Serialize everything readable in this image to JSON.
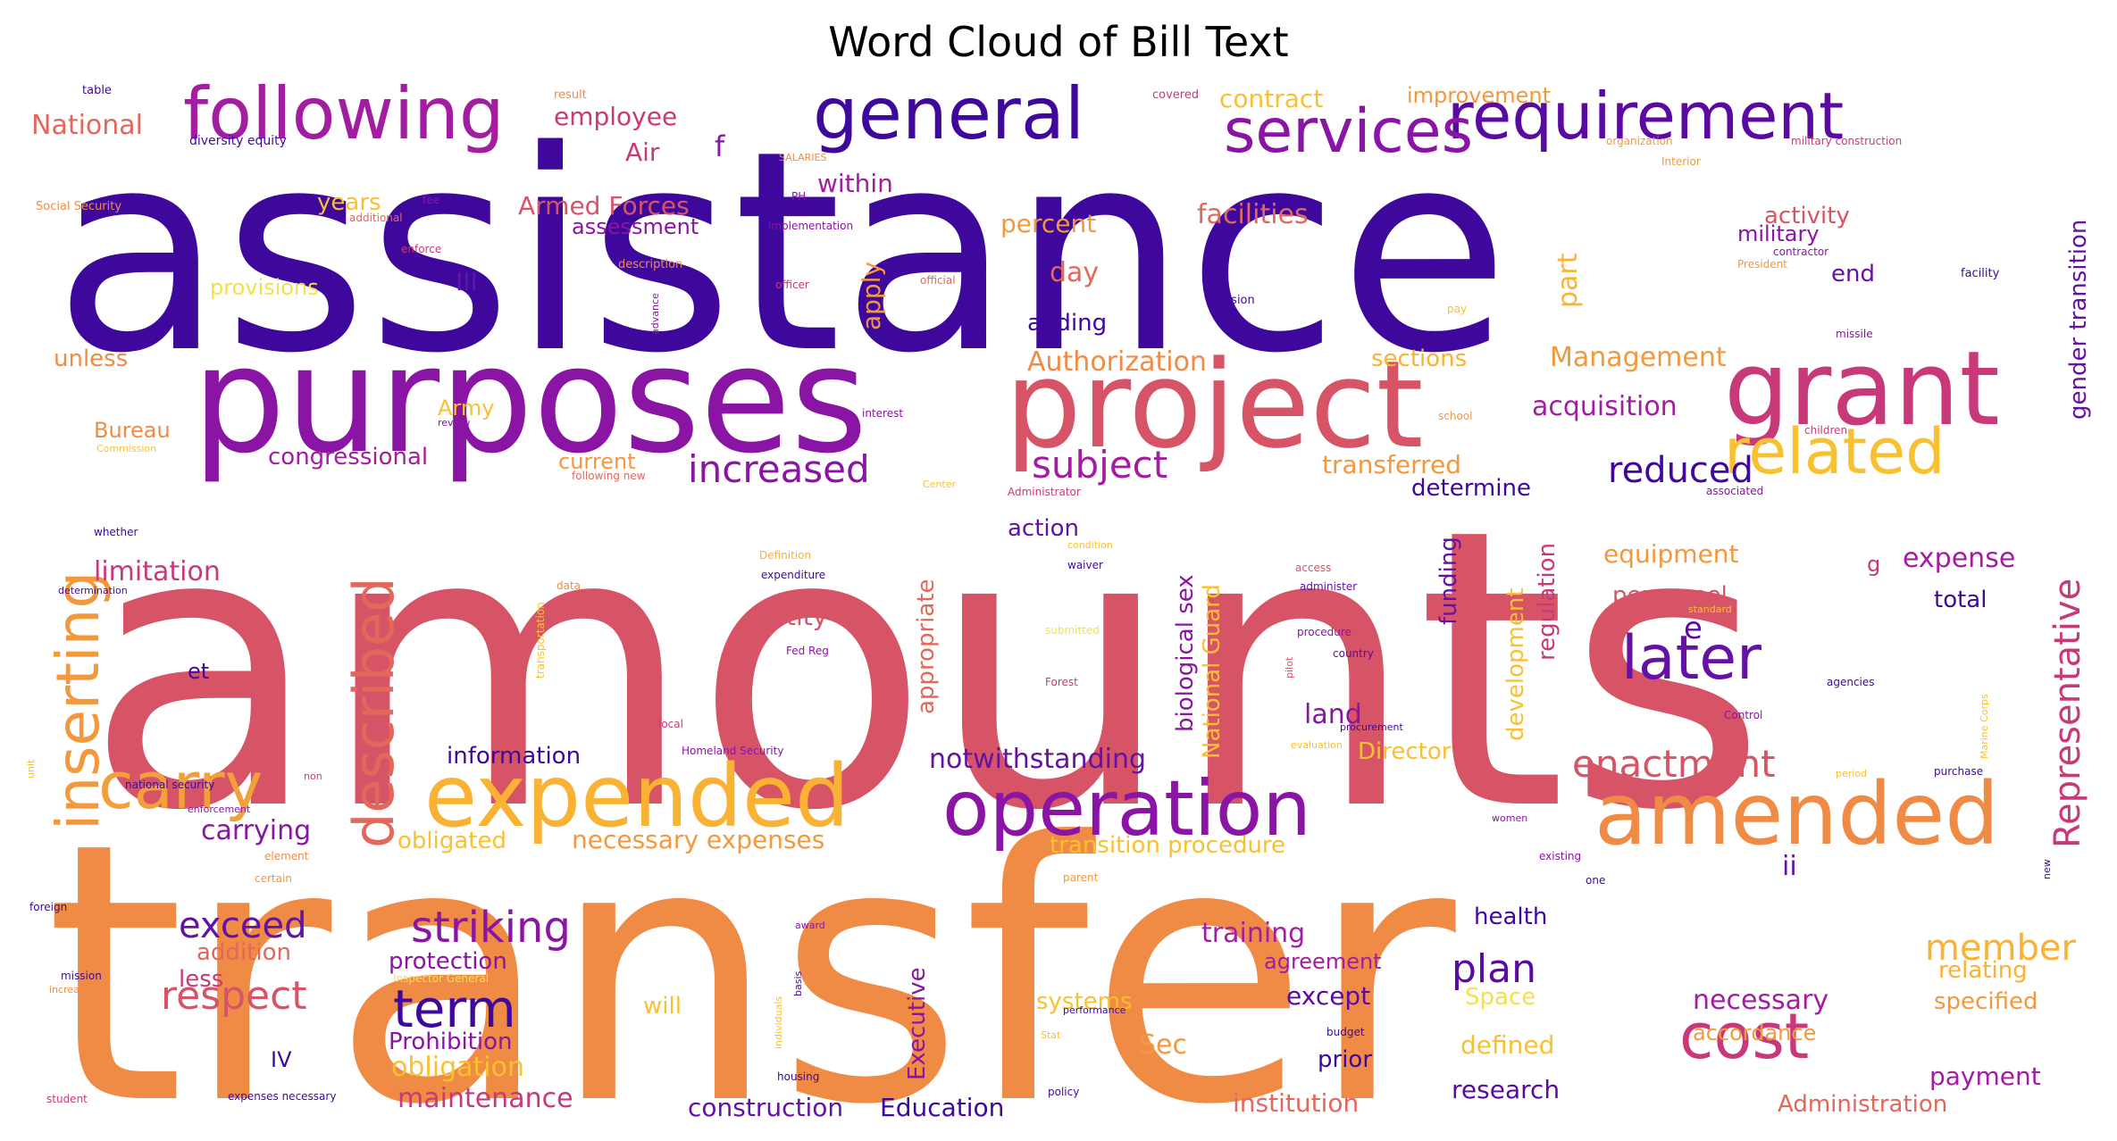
{
  "title": "Word Cloud of Bill Text",
  "palette": {
    "dark": "#3f089c",
    "purple": "#8a14a4",
    "magenta": "#c8397a",
    "pink": "#d75467",
    "coral": "#e3675a",
    "orange": "#f08b45",
    "gold": "#f9b233",
    "yellow": "#f4e04c"
  },
  "words": [
    {
      "text": "assistance",
      "color": "#3f089c"
    },
    {
      "text": "amounts",
      "color": "#d75467"
    },
    {
      "text": "transfer",
      "color": "#f08b45"
    },
    {
      "text": "purposes",
      "color": "#8a14a4"
    },
    {
      "text": "project",
      "color": "#d75467"
    },
    {
      "text": "grant",
      "color": "#c8397a"
    },
    {
      "text": "following",
      "color": "#a31da0"
    },
    {
      "text": "general",
      "color": "#3f089c"
    },
    {
      "text": "requirement",
      "color": "#5a0aa1"
    },
    {
      "text": "services",
      "color": "#8a14a4"
    },
    {
      "text": "inserting",
      "color": "#f4983e"
    },
    {
      "text": "described",
      "color": "#e3675a"
    },
    {
      "text": "carry",
      "color": "#f4a03a"
    },
    {
      "text": "expended",
      "color": "#f9b233"
    },
    {
      "text": "operation",
      "color": "#8a14a4"
    },
    {
      "text": "amended",
      "color": "#f08b45"
    },
    {
      "text": "related",
      "color": "#f9c030"
    },
    {
      "text": "later",
      "color": "#6512a4"
    },
    {
      "text": "cost",
      "color": "#c8397a"
    },
    {
      "text": "term",
      "color": "#3f089c"
    },
    {
      "text": "Representative",
      "color": "#c8397a"
    },
    {
      "text": "increased",
      "color": "#8a14a4"
    },
    {
      "text": "subject",
      "color": "#a31da0"
    },
    {
      "text": "reduced",
      "color": "#3f089c"
    },
    {
      "text": "striking",
      "color": "#8a14a4"
    },
    {
      "text": "respect",
      "color": "#d75467"
    },
    {
      "text": "exceed",
      "color": "#6512a4"
    },
    {
      "text": "plan",
      "color": "#5a0aa1"
    },
    {
      "text": "member",
      "color": "#f9b233"
    },
    {
      "text": "enactment",
      "color": "#d75467"
    },
    {
      "text": "acquisition",
      "color": "#a31da0"
    },
    {
      "text": "Management",
      "color": "#f4983e"
    },
    {
      "text": "Authorization",
      "color": "#f08b45"
    },
    {
      "text": "transferred",
      "color": "#f4983e"
    },
    {
      "text": "determine",
      "color": "#3f089c"
    },
    {
      "text": "necessary expenses",
      "color": "#f4983e"
    },
    {
      "text": "obligated",
      "color": "#f9c030"
    },
    {
      "text": "notwithstanding",
      "color": "#6512a4"
    },
    {
      "text": "carrying",
      "color": "#8a14a4"
    },
    {
      "text": "information",
      "color": "#3f089c"
    },
    {
      "text": "Director",
      "color": "#f9c030"
    },
    {
      "text": "transition procedure",
      "color": "#f9c030"
    },
    {
      "text": "facilities",
      "color": "#e3675a"
    },
    {
      "text": "percent",
      "color": "#f4983e"
    },
    {
      "text": "day",
      "color": "#e3675a"
    },
    {
      "text": "adding",
      "color": "#3f089c"
    },
    {
      "text": "apply",
      "color": "#f4983e"
    },
    {
      "text": "part",
      "color": "#f9b233"
    },
    {
      "text": "sections",
      "color": "#f9b233"
    },
    {
      "text": "contract",
      "color": "#f9c030"
    },
    {
      "text": "improvement",
      "color": "#f4983e"
    },
    {
      "text": "activity",
      "color": "#d75467"
    },
    {
      "text": "military",
      "color": "#8a14a4"
    },
    {
      "text": "end",
      "color": "#6512a4"
    },
    {
      "text": "gender transition",
      "color": "#6512a4"
    },
    {
      "text": "employee",
      "color": "#c8397a"
    },
    {
      "text": "National",
      "color": "#e3675a"
    },
    {
      "text": "Air",
      "color": "#c8397a"
    },
    {
      "text": "f",
      "color": "#8a14a4"
    },
    {
      "text": "within",
      "color": "#a31da0"
    },
    {
      "text": "Armed Forces",
      "color": "#d75467"
    },
    {
      "text": "assessment",
      "color": "#8a14a4"
    },
    {
      "text": "years",
      "color": "#f9c030"
    },
    {
      "text": "provisions",
      "color": "#f4e04c"
    },
    {
      "text": "III",
      "color": "#6512a4"
    },
    {
      "text": "unless",
      "color": "#f08b45"
    },
    {
      "text": "Bureau",
      "color": "#f08b45"
    },
    {
      "text": "Army",
      "color": "#f9c030"
    },
    {
      "text": "congressional",
      "color": "#a31da0"
    },
    {
      "text": "current",
      "color": "#f4983e"
    },
    {
      "text": "limitation",
      "color": "#c8397a"
    },
    {
      "text": "et",
      "color": "#3f089c"
    },
    {
      "text": "action",
      "color": "#6512a4"
    },
    {
      "text": "entity",
      "color": "#d75467"
    },
    {
      "text": "appropriate",
      "color": "#e3675a"
    },
    {
      "text": "biological sex",
      "color": "#8a14a4"
    },
    {
      "text": "National Guard",
      "color": "#f9c030"
    },
    {
      "text": "funding",
      "color": "#6512a4"
    },
    {
      "text": "development",
      "color": "#f9c030"
    },
    {
      "text": "regulation",
      "color": "#c8397a"
    },
    {
      "text": "equipment",
      "color": "#f4983e"
    },
    {
      "text": "personnel",
      "color": "#d75467"
    },
    {
      "text": "e",
      "color": "#5a0aa1"
    },
    {
      "text": "g",
      "color": "#c8397a"
    },
    {
      "text": "expense",
      "color": "#a31da0"
    },
    {
      "text": "total",
      "color": "#3f089c"
    },
    {
      "text": "land",
      "color": "#8a14a4"
    },
    {
      "text": "ii",
      "color": "#6512a4"
    },
    {
      "text": "training",
      "color": "#a31da0"
    },
    {
      "text": "agreement",
      "color": "#a31da0"
    },
    {
      "text": "health",
      "color": "#3f089c"
    },
    {
      "text": "except",
      "color": "#5a0aa1"
    },
    {
      "text": "necessary",
      "color": "#a31da0"
    },
    {
      "text": "relating",
      "color": "#f9b233"
    },
    {
      "text": "specified",
      "color": "#f4983e"
    },
    {
      "text": "accordance",
      "color": "#f4983e"
    },
    {
      "text": "payment",
      "color": "#a31da0"
    },
    {
      "text": "Administration",
      "color": "#e3675a"
    },
    {
      "text": "defined",
      "color": "#f9c030"
    },
    {
      "text": "research",
      "color": "#5a0aa1"
    },
    {
      "text": "institution",
      "color": "#e3675a"
    },
    {
      "text": "prior",
      "color": "#3f089c"
    },
    {
      "text": "Space",
      "color": "#f4e04c"
    },
    {
      "text": "Sec",
      "color": "#f4983e"
    },
    {
      "text": "Executive",
      "color": "#8a14a4"
    },
    {
      "text": "Education",
      "color": "#3f089c"
    },
    {
      "text": "construction",
      "color": "#6512a4"
    },
    {
      "text": "maintenance",
      "color": "#c8397a"
    },
    {
      "text": "obligation",
      "color": "#f9c030"
    },
    {
      "text": "Prohibition",
      "color": "#8a14a4"
    },
    {
      "text": "protection",
      "color": "#8a14a4"
    },
    {
      "text": "systems",
      "color": "#f9c030"
    },
    {
      "text": "will",
      "color": "#f9c030"
    },
    {
      "text": "addition",
      "color": "#e3675a"
    },
    {
      "text": "less",
      "color": "#c8397a"
    },
    {
      "text": "IV",
      "color": "#3f089c"
    },
    {
      "text": "table",
      "color": "#3f089c"
    },
    {
      "text": "result",
      "color": "#f08b45"
    },
    {
      "text": "covered",
      "color": "#c8397a"
    },
    {
      "text": "diversity equity",
      "color": "#3f089c"
    },
    {
      "text": "SALARIES",
      "color": "#f08b45"
    },
    {
      "text": "organization",
      "color": "#f4983e"
    },
    {
      "text": "military construction",
      "color": "#c8397a"
    },
    {
      "text": "Interior",
      "color": "#f4983e"
    },
    {
      "text": "Social Security",
      "color": "#f08b45"
    },
    {
      "text": "fee",
      "color": "#8a14a4"
    },
    {
      "text": "additional",
      "color": "#e3675a"
    },
    {
      "text": "PH",
      "color": "#8a14a4"
    },
    {
      "text": "implementation",
      "color": "#8a14a4"
    },
    {
      "text": "enforce",
      "color": "#c8397a"
    },
    {
      "text": "description",
      "color": "#f08b45"
    },
    {
      "text": "officer",
      "color": "#c8397a"
    },
    {
      "text": "official",
      "color": "#e3675a"
    },
    {
      "text": "contractor",
      "color": "#8a14a4"
    },
    {
      "text": "President",
      "color": "#f4983e"
    },
    {
      "text": "facility",
      "color": "#3f089c"
    },
    {
      "text": "division",
      "color": "#3f089c"
    },
    {
      "text": "pay",
      "color": "#f9c030"
    },
    {
      "text": "missile",
      "color": "#8a14a4"
    },
    {
      "text": "advance",
      "color": "#8a14a4"
    },
    {
      "text": "interest",
      "color": "#8a14a4"
    },
    {
      "text": "school",
      "color": "#f4983e"
    },
    {
      "text": "children",
      "color": "#c8397a"
    },
    {
      "text": "review",
      "color": "#8a14a4"
    },
    {
      "text": "Commission",
      "color": "#f9c030"
    },
    {
      "text": "following new",
      "color": "#e3675a"
    },
    {
      "text": "Center",
      "color": "#f9c030"
    },
    {
      "text": "Administrator",
      "color": "#c8397a"
    },
    {
      "text": "associated",
      "color": "#8a14a4"
    },
    {
      "text": "whether",
      "color": "#3f089c"
    },
    {
      "text": "Definition",
      "color": "#f9b233"
    },
    {
      "text": "condition",
      "color": "#f9c030"
    },
    {
      "text": "expenditure",
      "color": "#3f089c"
    },
    {
      "text": "waiver",
      "color": "#3f089c"
    },
    {
      "text": "access",
      "color": "#d75467"
    },
    {
      "text": "administer",
      "color": "#6512a4"
    },
    {
      "text": "standard",
      "color": "#f9c030"
    },
    {
      "text": "determination",
      "color": "#3f089c"
    },
    {
      "text": "data",
      "color": "#f08b45"
    },
    {
      "text": "submitted",
      "color": "#f4e04c"
    },
    {
      "text": "procedure",
      "color": "#8a14a4"
    },
    {
      "text": "country",
      "color": "#5a0aa1"
    },
    {
      "text": "pilot",
      "color": "#d75467"
    },
    {
      "text": "Fed Reg",
      "color": "#8a14a4"
    },
    {
      "text": "transportation",
      "color": "#f9c030"
    },
    {
      "text": "Forest",
      "color": "#c8397a"
    },
    {
      "text": "procurement",
      "color": "#3f089c"
    },
    {
      "text": "agencies",
      "color": "#3f089c"
    },
    {
      "text": "Control",
      "color": "#8a14a4"
    },
    {
      "text": "Marine Corps",
      "color": "#f9c030"
    },
    {
      "text": "local",
      "color": "#c8397a"
    },
    {
      "text": "Homeland Security",
      "color": "#8a14a4"
    },
    {
      "text": "evaluation",
      "color": "#f9c030"
    },
    {
      "text": "unit",
      "color": "#f9c030"
    },
    {
      "text": "national security",
      "color": "#3f089c"
    },
    {
      "text": "non",
      "color": "#c8397a"
    },
    {
      "text": "enforcement",
      "color": "#8a14a4"
    },
    {
      "text": "element",
      "color": "#f08b45"
    },
    {
      "text": "certain",
      "color": "#f4983e"
    },
    {
      "text": "period",
      "color": "#f9c030"
    },
    {
      "text": "purchase",
      "color": "#3f089c"
    },
    {
      "text": "women",
      "color": "#8a14a4"
    },
    {
      "text": "existing",
      "color": "#8a14a4"
    },
    {
      "text": "one",
      "color": "#3f089c"
    },
    {
      "text": "new",
      "color": "#3f089c"
    },
    {
      "text": "parent",
      "color": "#f4983e"
    },
    {
      "text": "foreign",
      "color": "#3f089c"
    },
    {
      "text": "award",
      "color": "#8a14a4"
    },
    {
      "text": "mission",
      "color": "#3f089c"
    },
    {
      "text": "increase",
      "color": "#f08b45"
    },
    {
      "text": "Inspector General",
      "color": "#f4e04c"
    },
    {
      "text": "basis",
      "color": "#3f089c"
    },
    {
      "text": "individuals",
      "color": "#f9c030"
    },
    {
      "text": "performance",
      "color": "#3f089c"
    },
    {
      "text": "budget",
      "color": "#3f089c"
    },
    {
      "text": "Stat",
      "color": "#f9c030"
    },
    {
      "text": "housing",
      "color": "#3f089c"
    },
    {
      "text": "policy",
      "color": "#3f089c"
    },
    {
      "text": "student",
      "color": "#c8397a"
    },
    {
      "text": "expenses necessary",
      "color": "#3f089c"
    }
  ]
}
